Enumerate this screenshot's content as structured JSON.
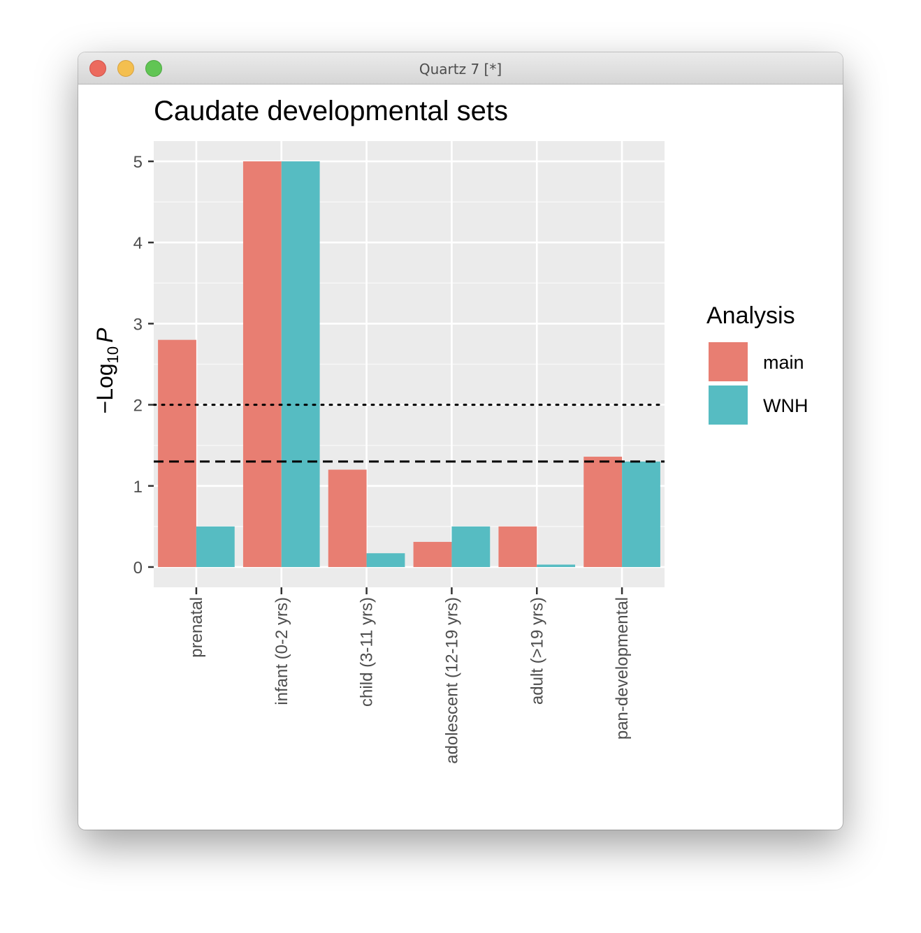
{
  "window": {
    "title": "Quartz 7 [*]"
  },
  "chart_data": {
    "type": "bar",
    "title": "Caudate developmental sets",
    "xlabel": "",
    "ylabel": {
      "minus": "−",
      "base": "Log",
      "subscript": "10",
      "variable": "P"
    },
    "ylim": [
      -0.25,
      5.25
    ],
    "yticks": [
      "0",
      "1",
      "2",
      "3",
      "4",
      "5"
    ],
    "categories": [
      "prenatal",
      "infant (0-2 yrs)",
      "child (3-11 yrs)",
      "adolescent (12-19 yrs)",
      "adult (>19 yrs)",
      "pan-developmental"
    ],
    "series": [
      {
        "name": "main",
        "color": "#e87e72",
        "values": [
          2.8,
          5.0,
          1.2,
          0.31,
          0.5,
          1.36
        ]
      },
      {
        "name": "WNH",
        "color": "#56bcc2",
        "values": [
          0.5,
          5.0,
          0.17,
          0.5,
          0.03,
          1.3
        ]
      }
    ],
    "reference_lines": [
      {
        "y": 2,
        "style": "dotted"
      },
      {
        "y": 1.3,
        "style": "dashed"
      }
    ],
    "legend": {
      "title": "Analysis",
      "position": "right"
    },
    "grid": true
  }
}
